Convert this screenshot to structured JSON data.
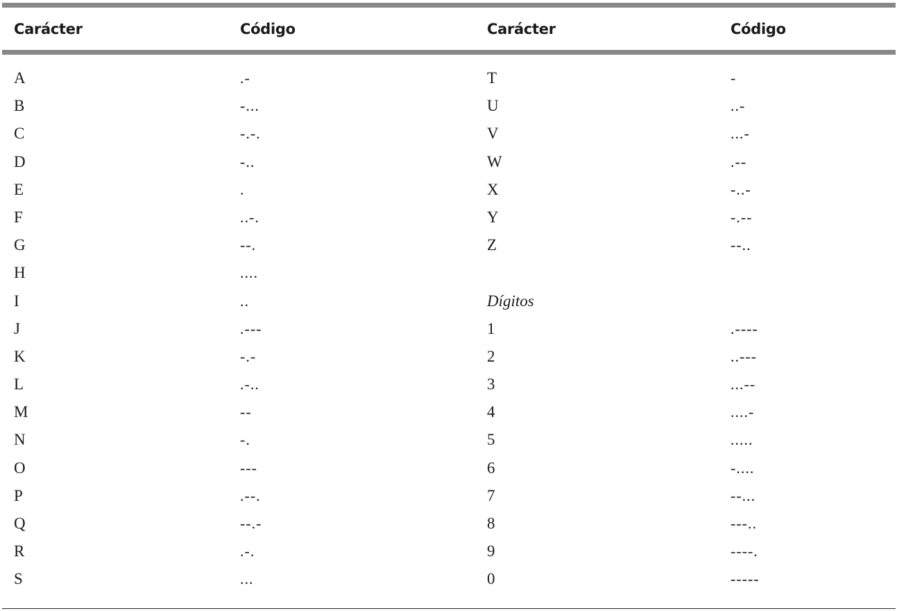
{
  "table": {
    "headers": [
      "Carácter",
      "Código",
      "Carácter",
      "Código"
    ],
    "rows": [
      {
        "char1": "A",
        "code1": ".-",
        "char2": "T",
        "code2": "-"
      },
      {
        "char1": "B",
        "code1": "-...",
        "char2": "U",
        "code2": "..-"
      },
      {
        "char1": "C",
        "code1": "-.-.",
        "char2": "V",
        "code2": "...-"
      },
      {
        "char1": "D",
        "code1": "-..",
        "char2": "W",
        "code2": ".--"
      },
      {
        "char1": "E",
        "code1": ".",
        "char2": "X",
        "code2": "-..-"
      },
      {
        "char1": "F",
        "code1": "..-.",
        "char2": "Y",
        "code2": "-.--"
      },
      {
        "char1": "G",
        "code1": "--.",
        "char2": "Z",
        "code2": "--.."
      },
      {
        "char1": "H",
        "code1": "....",
        "char2": "",
        "code2": ""
      },
      {
        "char1": "I",
        "code1": "..",
        "char2": "Dígitos",
        "code2": ""
      },
      {
        "char1": "J",
        "code1": ".---",
        "char2": "1",
        "code2": ".----"
      },
      {
        "char1": "K",
        "code1": "-.-",
        "char2": "2",
        "code2": "..---"
      },
      {
        "char1": "L",
        "code1": ".-..",
        "char2": "3",
        "code2": "...--"
      },
      {
        "char1": "M",
        "code1": "--",
        "char2": "4",
        "code2": "....-"
      },
      {
        "char1": "N",
        "code1": "-.",
        "char2": "5",
        "code2": "....."
      },
      {
        "char1": "O",
        "code1": "---",
        "char2": "6",
        "code2": "-...."
      },
      {
        "char1": "P",
        "code1": ".--.",
        "char2": "7",
        "code2": "--..."
      },
      {
        "char1": "Q",
        "code1": "--.-",
        "char2": "8",
        "code2": "---.."
      },
      {
        "char1": "R",
        "code1": ".-.",
        "char2": "9",
        "code2": "----."
      },
      {
        "char1": "S",
        "code1": "...",
        "char2": "0",
        "code2": "-----"
      }
    ]
  }
}
